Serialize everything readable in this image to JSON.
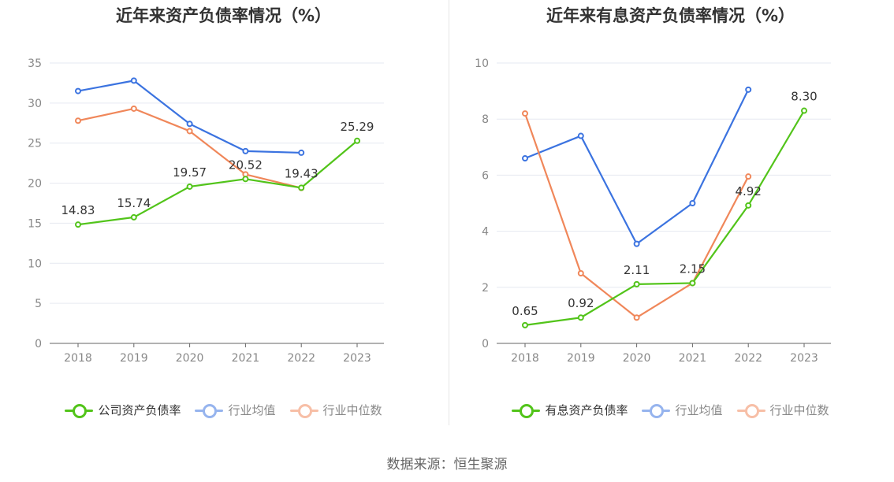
{
  "source": "数据来源：恒生聚源",
  "chart_data": [
    {
      "type": "line",
      "title": "近年来资产负债率情况（%）",
      "categories": [
        "2018",
        "2019",
        "2020",
        "2021",
        "2022",
        "2023"
      ],
      "ylim": [
        0,
        35
      ],
      "yticks": [
        0,
        5,
        10,
        15,
        20,
        25,
        30,
        35
      ],
      "grid": true,
      "legend_position": "bottom",
      "series": [
        {
          "name": "公司资产负债率",
          "color": "#52c41a",
          "values": [
            14.83,
            15.74,
            19.57,
            20.52,
            19.43,
            25.29
          ],
          "labels": [
            "14.83",
            "15.74",
            "19.57",
            "20.52",
            "19.43",
            "25.29"
          ],
          "primary": true
        },
        {
          "name": "行业均值",
          "color": "#3b73e0",
          "values": [
            31.5,
            32.8,
            27.4,
            24.0,
            23.8,
            null
          ],
          "primary": false
        },
        {
          "name": "行业中位数",
          "color": "#f0875a",
          "values": [
            27.8,
            29.3,
            26.5,
            21.1,
            19.4,
            null
          ],
          "primary": false
        }
      ]
    },
    {
      "type": "line",
      "title": "近年来有息资产负债率情况（%）",
      "categories": [
        "2018",
        "2019",
        "2020",
        "2021",
        "2022",
        "2023"
      ],
      "ylim": [
        0,
        10
      ],
      "yticks": [
        0,
        2,
        4,
        6,
        8,
        10
      ],
      "grid": true,
      "legend_position": "bottom",
      "series": [
        {
          "name": "有息资产负债率",
          "color": "#52c41a",
          "values": [
            0.65,
            0.92,
            2.11,
            2.15,
            4.92,
            8.3
          ],
          "labels": [
            "0.65",
            "0.92",
            "2.11",
            "2.15",
            "4.92",
            "8.30"
          ],
          "primary": true
        },
        {
          "name": "行业均值",
          "color": "#3b73e0",
          "values": [
            6.6,
            7.4,
            3.55,
            5.0,
            9.05,
            null
          ],
          "primary": false
        },
        {
          "name": "行业中位数",
          "color": "#f0875a",
          "values": [
            8.2,
            2.5,
            0.92,
            2.15,
            5.95,
            null
          ],
          "primary": false
        }
      ]
    }
  ]
}
